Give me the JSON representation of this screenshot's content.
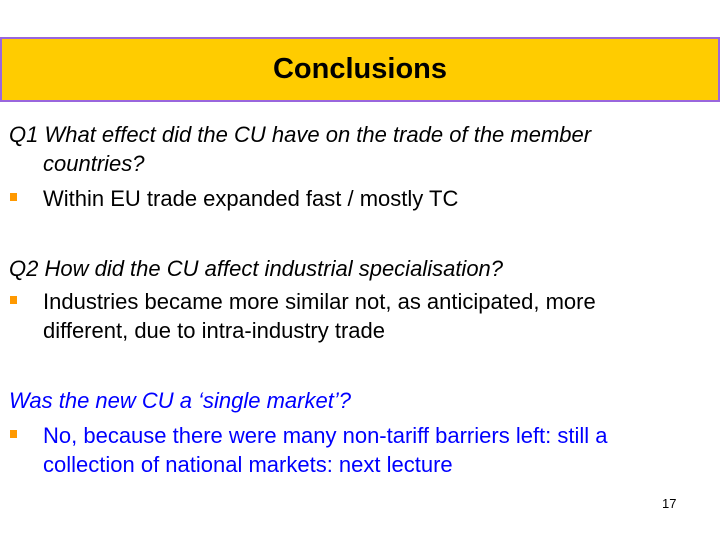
{
  "title": "Conclusions",
  "sections": [
    {
      "question": [
        "Q1 What effect did the CU have on the trade of the member",
        "countries?"
      ],
      "bullet": [
        "Within EU trade expanded fast / mostly TC"
      ]
    },
    {
      "question": [
        "Q2 How did the CU affect industrial specialisation?"
      ],
      "bullet": [
        "Industries became more similar not, as anticipated, more",
        "different, due to intra-industry trade"
      ]
    },
    {
      "question": [
        "Was the new CU a ‘single market’?"
      ],
      "bullet": [
        "No, because there were many non-tariff barriers left: still a",
        "collection of national markets: next lecture"
      ]
    }
  ],
  "colors": {
    "header_bg": "#FFCC00",
    "header_border": "#9966DD",
    "bullet": "#FF9900",
    "highlight_text": "#0000FF"
  },
  "page_number": "17"
}
